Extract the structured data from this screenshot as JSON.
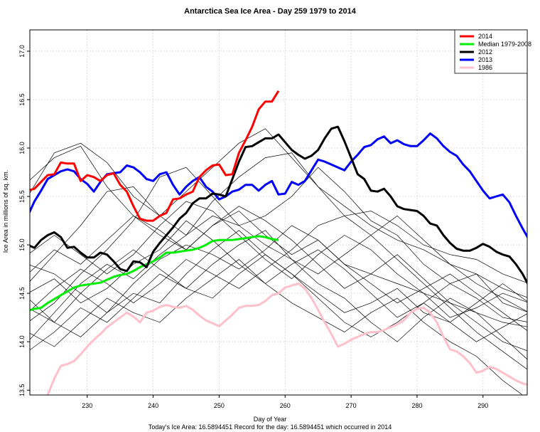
{
  "chart_data": {
    "type": "line",
    "title": "Antarctica Sea Ice Area - Day 259 1979 to 2014",
    "xlabel": "Day of Year",
    "ylabel": "Ice Area in millions of sq. km.",
    "subtitle": "Today's Ice Area: 16.5894451    Record for the day: 16.5894451 which occurred in 2014",
    "xlim": [
      221.3,
      296.7
    ],
    "ylim": [
      13.45,
      17.22
    ],
    "x_ticks": [
      230,
      240,
      250,
      260,
      270,
      280,
      290
    ],
    "y_ticks": [
      "13.5",
      "14.0",
      "14.5",
      "15.0",
      "15.5",
      "16.0",
      "16.5",
      "17.0"
    ],
    "grid": true,
    "legend_position": "top-right",
    "series": [
      {
        "name": "2014",
        "color": "#ff0000",
        "width": 3,
        "x_start": 221,
        "values": [
          15.56,
          15.58,
          15.65,
          15.72,
          15.73,
          15.85,
          15.84,
          15.84,
          15.66,
          15.72,
          15.7,
          15.66,
          15.72,
          15.74,
          15.62,
          15.55,
          15.4,
          15.27,
          15.25,
          15.25,
          15.3,
          15.33,
          15.47,
          15.48,
          15.52,
          15.55,
          15.7,
          15.77,
          15.82,
          15.83,
          15.72,
          15.73,
          15.95,
          16.08,
          16.22,
          16.4,
          16.48,
          16.48,
          16.59
        ]
      },
      {
        "name": "Median 1979-2008",
        "color": "#00ee00",
        "width": 3,
        "x_start": 221,
        "values": [
          14.32,
          14.34,
          14.35,
          14.4,
          14.44,
          14.48,
          14.52,
          14.56,
          14.58,
          14.59,
          14.6,
          14.61,
          14.64,
          14.67,
          14.69,
          14.7,
          14.73,
          14.77,
          14.8,
          14.83,
          14.87,
          14.92,
          14.92,
          14.93,
          14.94,
          14.95,
          14.97,
          15.0,
          15.04,
          15.05,
          15.05,
          15.05,
          15.06,
          15.07,
          15.08,
          15.09,
          15.08,
          15.06,
          15.05
        ]
      },
      {
        "name": "2012",
        "color": "#000000",
        "width": 3,
        "x_start": 221,
        "values": [
          15.0,
          14.97,
          15.05,
          15.1,
          15.13,
          15.08,
          14.97,
          14.98,
          14.92,
          14.87,
          14.87,
          14.92,
          14.9,
          14.83,
          14.75,
          14.73,
          14.83,
          14.82,
          14.77,
          14.93,
          15.02,
          15.1,
          15.18,
          15.27,
          15.33,
          15.43,
          15.48,
          15.48,
          15.53,
          15.52,
          15.5,
          15.68,
          15.86,
          16.01,
          16.02,
          16.06,
          16.1,
          16.1,
          16.14,
          16.06,
          15.98,
          15.93,
          15.89,
          15.92,
          15.98,
          16.1,
          16.2,
          16.22,
          16.07,
          15.9,
          15.73,
          15.68,
          15.56,
          15.55,
          15.58,
          15.5,
          15.4,
          15.37,
          15.36,
          15.35,
          15.3,
          15.22,
          15.2,
          15.1,
          15.02,
          14.96,
          14.94,
          14.94,
          14.97,
          15.01,
          14.98,
          14.93,
          14.9,
          14.88,
          14.8,
          14.7,
          14.57
        ]
      },
      {
        "name": "2013",
        "color": "#0000ff",
        "width": 3,
        "x_start": 221,
        "values": [
          15.3,
          15.45,
          15.56,
          15.68,
          15.72,
          15.76,
          15.78,
          15.76,
          15.68,
          15.63,
          15.55,
          15.65,
          15.73,
          15.74,
          15.75,
          15.82,
          15.8,
          15.75,
          15.68,
          15.66,
          15.73,
          15.75,
          15.62,
          15.52,
          15.6,
          15.66,
          15.7,
          15.6,
          15.55,
          15.47,
          15.5,
          15.55,
          15.57,
          15.62,
          15.62,
          15.56,
          15.62,
          15.66,
          15.52,
          15.53,
          15.65,
          15.62,
          15.66,
          15.77,
          15.88,
          15.86,
          15.83,
          15.8,
          15.77,
          15.86,
          15.93,
          16.01,
          16.03,
          16.09,
          16.12,
          16.05,
          16.08,
          16.04,
          16.02,
          16.02,
          16.08,
          16.15,
          16.1,
          16.02,
          15.96,
          15.92,
          15.83,
          15.76,
          15.66,
          15.56,
          15.48,
          15.5,
          15.52,
          15.44,
          15.3,
          15.17,
          15.05
        ]
      },
      {
        "name": "1986",
        "color": "#ffc0cb",
        "width": 3,
        "x_start": 224,
        "values": [
          13.45,
          13.62,
          13.75,
          13.77,
          13.8,
          13.87,
          13.95,
          14.02,
          14.08,
          14.15,
          14.2,
          14.25,
          14.3,
          14.26,
          14.2,
          14.3,
          14.32,
          14.36,
          14.38,
          14.36,
          14.35,
          14.37,
          14.33,
          14.27,
          14.22,
          14.19,
          14.16,
          14.22,
          14.28,
          14.35,
          14.37,
          14.37,
          14.38,
          14.42,
          14.48,
          14.5,
          14.56,
          14.58,
          14.6,
          14.55,
          14.45,
          14.33,
          14.2,
          14.08,
          13.95,
          13.98,
          14.02,
          14.05,
          14.08,
          14.1,
          14.1,
          14.12,
          14.15,
          14.18,
          14.22,
          14.3,
          14.34,
          14.35,
          14.3,
          14.2,
          14.05,
          13.92,
          13.9,
          13.85,
          13.78,
          13.68,
          13.7,
          13.74,
          13.72,
          13.68,
          13.64,
          13.6,
          13.57,
          13.55
        ]
      }
    ],
    "other_years": {
      "color": "#000000",
      "x_start": 221,
      "x_step": 4,
      "series": [
        [
          15.65,
          15.9,
          16.02,
          15.6,
          15.3,
          15.1,
          14.95,
          15.2,
          15.35,
          15.1,
          14.9,
          15.05,
          14.8,
          14.7,
          14.6,
          14.5,
          14.4,
          14.3,
          14.2,
          14.15
        ],
        [
          15.5,
          15.95,
          16.05,
          15.85,
          15.5,
          15.3,
          15.55,
          15.8,
          16.05,
          16.2,
          15.9,
          15.6,
          15.4,
          15.2,
          15.05,
          14.95,
          14.8,
          14.7,
          14.55,
          14.45
        ],
        [
          14.6,
          14.9,
          15.2,
          15.55,
          15.6,
          15.3,
          15.1,
          15.45,
          15.7,
          15.9,
          15.95,
          15.6,
          15.3,
          15.35,
          15.2,
          15.0,
          14.9,
          14.85,
          14.7,
          14.6
        ],
        [
          14.2,
          14.4,
          14.7,
          14.95,
          15.25,
          15.7,
          15.8,
          15.5,
          15.2,
          15.3,
          15.5,
          15.8,
          15.55,
          15.25,
          15.1,
          14.8,
          14.6,
          14.7,
          14.4,
          14.3
        ],
        [
          14.0,
          14.3,
          14.6,
          14.8,
          14.65,
          14.9,
          15.1,
          15.3,
          15.2,
          15.0,
          14.85,
          14.7,
          14.9,
          15.1,
          15.3,
          15.05,
          14.8,
          14.6,
          14.45,
          14.3
        ],
        [
          14.8,
          14.7,
          14.5,
          14.3,
          14.6,
          14.85,
          15.0,
          14.9,
          14.75,
          14.95,
          15.2,
          15.05,
          14.8,
          14.6,
          14.4,
          14.55,
          14.7,
          14.5,
          14.3,
          14.1
        ],
        [
          14.45,
          14.2,
          14.05,
          14.3,
          14.5,
          14.4,
          14.7,
          14.95,
          15.15,
          14.9,
          14.7,
          14.5,
          14.3,
          14.4,
          14.55,
          14.3,
          14.2,
          14.4,
          14.6,
          14.4
        ],
        [
          13.9,
          14.1,
          14.35,
          14.2,
          14.45,
          14.7,
          14.55,
          14.8,
          15.0,
          15.15,
          14.85,
          14.6,
          14.45,
          14.2,
          14.0,
          14.25,
          14.45,
          14.3,
          14.05,
          13.8
        ],
        [
          14.7,
          14.95,
          14.8,
          15.05,
          15.3,
          15.15,
          14.95,
          15.2,
          15.4,
          15.25,
          15.05,
          14.8,
          14.55,
          14.7,
          14.9,
          14.65,
          14.4,
          14.2,
          14.0,
          13.9
        ],
        [
          14.3,
          14.55,
          14.75,
          14.6,
          14.4,
          14.6,
          14.85,
          14.7,
          14.55,
          14.75,
          14.95,
          15.2,
          15.3,
          15.1,
          14.85,
          14.6,
          14.35,
          14.1,
          13.9,
          13.7
        ],
        [
          14.9,
          15.1,
          14.9,
          14.7,
          14.9,
          15.2,
          15.45,
          15.35,
          15.1,
          14.85,
          14.65,
          14.9,
          15.1,
          14.95,
          14.7,
          14.5,
          14.25,
          14.35,
          14.5,
          14.4
        ],
        [
          14.1,
          13.95,
          14.2,
          14.45,
          14.3,
          14.2,
          14.45,
          14.65,
          14.85,
          14.6,
          14.4,
          14.25,
          14.1,
          14.3,
          14.45,
          14.2,
          14.0,
          13.85,
          13.6,
          13.4
        ],
        [
          14.5,
          14.65,
          14.4,
          14.55,
          14.8,
          14.95,
          15.25,
          15.05,
          14.8,
          14.6,
          14.8,
          14.95,
          14.75,
          14.5,
          14.25,
          14.4,
          14.6,
          14.45,
          14.25,
          14.2
        ],
        [
          14.35,
          14.2,
          14.5,
          14.75,
          14.95,
          14.75,
          14.55,
          14.45,
          14.7,
          14.9,
          14.7,
          14.45,
          14.2,
          14.05,
          14.2,
          14.4,
          14.2,
          14.0,
          14.15,
          14.3
        ]
      ]
    }
  }
}
